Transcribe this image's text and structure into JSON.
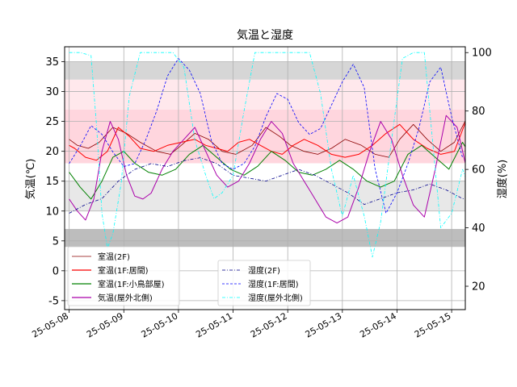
{
  "chart_data": {
    "type": "line",
    "title": "気温と湿度",
    "ylabel_left": "気温(℃)",
    "ylabel_right": "湿度(%)",
    "ylim_left": [
      -6.5,
      37.5
    ],
    "ylim_right": [
      12.0,
      102.0
    ],
    "xlim": [
      "2025-05-07 22:00",
      "2025-05-15 06:00"
    ],
    "x_tick_labels": [
      "25-05-08",
      "25-05-09",
      "25-05-10",
      "25-05-11",
      "25-05-12",
      "25-05-13",
      "25-05-14",
      "25-05-15"
    ],
    "x_tick_values": [
      "2025-05-08",
      "2025-05-09",
      "2025-05-10",
      "2025-05-11",
      "2025-05-12",
      "2025-05-13",
      "2025-05-14",
      "2025-05-15"
    ],
    "y_ticks_left": [
      -5,
      0,
      5,
      10,
      15,
      20,
      25,
      30,
      35
    ],
    "y_ticks_right": [
      20,
      40,
      60,
      80,
      100
    ],
    "grid": true,
    "bands": [
      {
        "y0": 4,
        "y1": 7,
        "color": "#bdbdbd"
      },
      {
        "y0": 10,
        "y1": 15,
        "color": "#e8e8e8"
      },
      {
        "y0": 18,
        "y1": 27,
        "color": "#ffd6de"
      },
      {
        "y0": 27,
        "y1": 32,
        "color": "#ffe8ec"
      },
      {
        "y0": 32,
        "y1": 35,
        "color": "#d6d6d6"
      }
    ],
    "legend_left": {
      "placement": "lower-left",
      "entries": [
        {
          "name": "室温(2F)",
          "color": "#8b0000",
          "style": "solid"
        },
        {
          "name": "室温(1F:居間)",
          "color": "#ff0000",
          "style": "solid"
        },
        {
          "name": "室温(1F:小鳥部屋)",
          "color": "#008000",
          "style": "solid"
        },
        {
          "name": "気温(屋外北側)",
          "color": "#aa00aa",
          "style": "solid"
        }
      ]
    },
    "legend_right": {
      "placement": "lower-center",
      "entries": [
        {
          "name": "湿度(2F)",
          "color": "#00008b",
          "style": "dashdot"
        },
        {
          "name": "湿度(1F:居間)",
          "color": "#0000ff",
          "style": "dashed"
        },
        {
          "name": "湿度(屋外北側)",
          "color": "#00ffff",
          "style": "dashdot"
        }
      ]
    },
    "series": [
      {
        "name": "室温(2F)",
        "axis": "left",
        "color": "#8b0000",
        "width": 0.8,
        "dash": "",
        "x": [
          0,
          0.15,
          0.35,
          0.55,
          0.8,
          1.05,
          1.3,
          1.6,
          1.85,
          2.05,
          2.3,
          2.55,
          2.8,
          3.05,
          3.35,
          3.6,
          3.85,
          4.05,
          4.3,
          4.55,
          4.8,
          5.05,
          5.35,
          5.6,
          5.85,
          6.05,
          6.3,
          6.55,
          6.8,
          7.05,
          7.3
        ],
        "y": [
          22,
          21,
          20.5,
          21.5,
          24,
          23,
          21.5,
          20,
          19.5,
          21,
          23,
          22,
          20,
          19.5,
          21,
          24,
          22.5,
          21,
          20,
          19.5,
          20.5,
          22,
          21,
          19.5,
          19,
          22,
          24.5,
          22,
          20,
          21.5,
          26
        ]
      },
      {
        "name": "室温(1F:居間)",
        "axis": "left",
        "color": "#ff0000",
        "width": 1.0,
        "dash": "",
        "x": [
          0,
          0.1,
          0.3,
          0.5,
          0.7,
          0.9,
          1.1,
          1.3,
          1.55,
          1.8,
          2.05,
          2.3,
          2.5,
          2.7,
          2.9,
          3.1,
          3.3,
          3.5,
          3.7,
          3.9,
          4.1,
          4.3,
          4.55,
          4.8,
          5.05,
          5.3,
          5.55,
          5.8,
          6.05,
          6.3,
          6.55,
          6.8,
          7.05,
          7.3
        ],
        "y": [
          21,
          20.5,
          19,
          18.5,
          20,
          24,
          22.5,
          20.5,
          20,
          21,
          21.5,
          22,
          21,
          20.5,
          20,
          21.5,
          22,
          21,
          20,
          19.5,
          21,
          22,
          21,
          19.5,
          19,
          19.5,
          21,
          23,
          24.5,
          22,
          20.5,
          19.5,
          20,
          26
        ]
      },
      {
        "name": "室温(1F:小鳥部屋)",
        "axis": "left",
        "color": "#008000",
        "width": 1.0,
        "dash": "",
        "x": [
          0,
          0.2,
          0.4,
          0.6,
          0.8,
          1.0,
          1.2,
          1.45,
          1.7,
          1.95,
          2.2,
          2.45,
          2.7,
          2.95,
          3.2,
          3.45,
          3.7,
          3.95,
          4.2,
          4.45,
          4.7,
          4.95,
          5.2,
          5.45,
          5.7,
          5.95,
          6.2,
          6.45,
          6.7,
          6.95,
          7.2,
          7.3
        ],
        "y": [
          16.5,
          14,
          12,
          15,
          19,
          20,
          18,
          16.5,
          16,
          17,
          19.5,
          21,
          19,
          17,
          16,
          17.5,
          20,
          18.5,
          16.5,
          16,
          17,
          18.5,
          17,
          15,
          14,
          15,
          19.5,
          21,
          19,
          17,
          21.5,
          20
        ]
      },
      {
        "name": "気温(屋外北側)",
        "axis": "left",
        "color": "#aa00aa",
        "width": 1.0,
        "dash": "",
        "x": [
          0,
          0.15,
          0.3,
          0.45,
          0.6,
          0.75,
          0.9,
          1.05,
          1.2,
          1.35,
          1.5,
          1.7,
          1.9,
          2.1,
          2.3,
          2.5,
          2.7,
          2.9,
          3.1,
          3.3,
          3.5,
          3.7,
          3.9,
          4.1,
          4.3,
          4.5,
          4.7,
          4.9,
          5.1,
          5.3,
          5.5,
          5.7,
          5.9,
          6.1,
          6.3,
          6.5,
          6.7,
          6.9,
          7.1,
          7.3
        ],
        "y": [
          12,
          10,
          8.5,
          12,
          20,
          25,
          22,
          16,
          12.5,
          12,
          13,
          17,
          20,
          22,
          24,
          20,
          16,
          14,
          15,
          18,
          22,
          25,
          23,
          18,
          15,
          12,
          9,
          8,
          9,
          14,
          20,
          25,
          22,
          16,
          11,
          9,
          17,
          26,
          24,
          16
        ]
      },
      {
        "name": "湿度(2F)",
        "axis": "right",
        "color": "#00008b",
        "width": 0.8,
        "dash": "4,2,1,2",
        "x": [
          0,
          0.3,
          0.6,
          0.9,
          1.2,
          1.5,
          1.8,
          2.1,
          2.4,
          2.7,
          3.0,
          3.3,
          3.6,
          3.9,
          4.2,
          4.5,
          4.8,
          5.1,
          5.4,
          5.7,
          6.0,
          6.3,
          6.6,
          6.9,
          7.2,
          7.3
        ],
        "y": [
          45,
          48,
          50,
          56,
          60,
          62,
          61,
          63,
          64,
          62,
          58,
          57,
          56,
          58,
          60,
          58,
          55,
          52,
          48,
          50,
          52,
          53,
          55,
          53,
          50,
          50
        ]
      },
      {
        "name": "湿度(1F:居間)",
        "axis": "right",
        "color": "#0000ff",
        "width": 0.8,
        "dash": "3,2",
        "x": [
          0,
          0.2,
          0.4,
          0.6,
          0.8,
          1.0,
          1.2,
          1.4,
          1.6,
          1.8,
          2.0,
          2.2,
          2.4,
          2.6,
          2.8,
          3.0,
          3.2,
          3.4,
          3.6,
          3.8,
          4.0,
          4.2,
          4.4,
          4.6,
          4.8,
          5.0,
          5.2,
          5.4,
          5.6,
          5.8,
          6.0,
          6.2,
          6.4,
          6.6,
          6.8,
          7.0,
          7.2
        ],
        "y": [
          62,
          68,
          75,
          72,
          66,
          61,
          62,
          70,
          80,
          92,
          98,
          94,
          86,
          70,
          62,
          60,
          62,
          68,
          78,
          86,
          84,
          76,
          72,
          74,
          82,
          90,
          96,
          88,
          60,
          45,
          52,
          62,
          74,
          90,
          95,
          78,
          64
        ]
      },
      {
        "name": "湿度(屋外北側)",
        "axis": "right",
        "color": "#00ffff",
        "width": 0.8,
        "dash": "4,2,1,2",
        "x": [
          0,
          0.2,
          0.4,
          0.5,
          0.6,
          0.7,
          0.8,
          0.95,
          1.1,
          1.3,
          1.5,
          1.7,
          1.9,
          2.1,
          2.3,
          2.5,
          2.65,
          2.8,
          3.0,
          3.2,
          3.4,
          3.6,
          3.8,
          4.0,
          4.2,
          4.4,
          4.6,
          4.8,
          5.0,
          5.2,
          5.4,
          5.55,
          5.7,
          5.9,
          6.1,
          6.3,
          6.5,
          6.65,
          6.8,
          7.0,
          7.2,
          7.3
        ],
        "y": [
          100,
          100,
          99,
          75,
          45,
          33,
          38,
          55,
          85,
          100,
          100,
          100,
          100,
          95,
          70,
          58,
          50,
          52,
          58,
          80,
          100,
          100,
          100,
          100,
          100,
          100,
          86,
          60,
          44,
          58,
          44,
          30,
          42,
          70,
          98,
          100,
          100,
          70,
          40,
          45,
          60,
          55
        ]
      }
    ]
  }
}
